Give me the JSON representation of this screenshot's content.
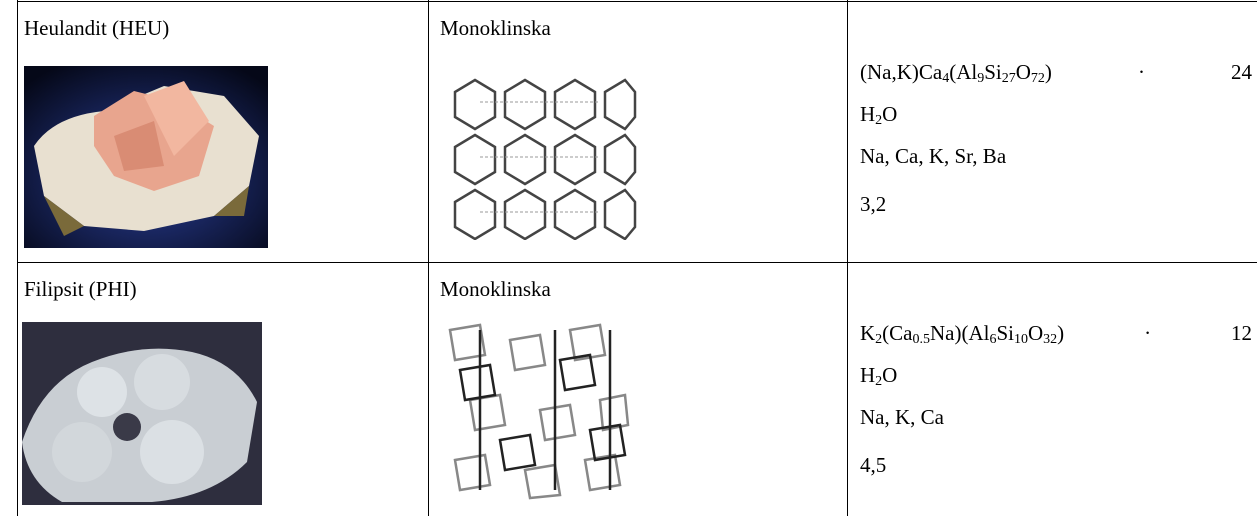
{
  "table": {
    "rows": [
      {
        "mineral": "Heulandit (HEU)",
        "crystal_system": "Monoklinska",
        "formula": [
          [
            [
              {
                "text": "(Na,K)Ca"
              },
              {
                "sub": "4"
              },
              {
                "text": "(Al"
              },
              {
                "sub": "9"
              },
              {
                "text": "Si"
              },
              {
                "sub": "27"
              },
              {
                "text": "O"
              },
              {
                "sub": "72"
              },
              {
                "text": ")"
              }
            ],
            [
              {
                "text": "·"
              }
            ],
            [
              {
                "text": "24"
              }
            ]
          ],
          [
            [
              {
                "text": "H"
              },
              {
                "sub": "2"
              },
              {
                "text": "O"
              }
            ]
          ]
        ],
        "cations": "Na, Ca, K, Sr, Ba",
        "value": "3,2"
      },
      {
        "mineral": "Filipsit (PHI)",
        "crystal_system": "Monoklinska",
        "formula": [
          [
            [
              {
                "text": "K"
              },
              {
                "sub": "2"
              },
              {
                "text": "(Ca"
              },
              {
                "sub": "0.5"
              },
              {
                "text": "Na)(Al"
              },
              {
                "sub": "6"
              },
              {
                "text": "Si"
              },
              {
                "sub": "10"
              },
              {
                "text": "O"
              },
              {
                "sub": "32"
              },
              {
                "text": ")"
              }
            ],
            [
              {
                "text": "·"
              }
            ],
            [
              {
                "text": "12"
              }
            ]
          ],
          [
            [
              {
                "text": "H"
              },
              {
                "sub": "2"
              },
              {
                "text": "O"
              }
            ]
          ]
        ],
        "cations": "Na, K, Ca",
        "value": "4,5"
      }
    ]
  }
}
